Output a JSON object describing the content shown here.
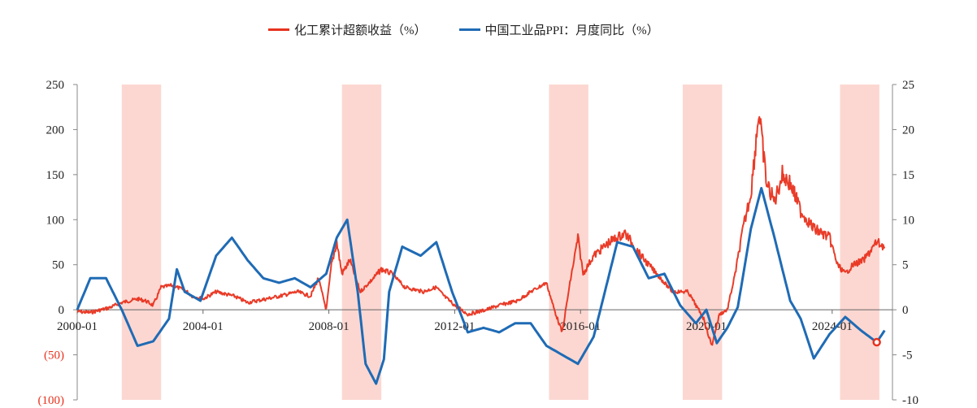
{
  "chart_data": {
    "type": "line",
    "title": "",
    "legend_placement": "top-center",
    "x_tick_labels": [
      "2000-01",
      "2004-01",
      "2008-01",
      "2012-01",
      "2016-01",
      "2020-01",
      "2024-01"
    ],
    "x_range": [
      "2000-01",
      "2025-12"
    ],
    "y_left": {
      "range": [
        -100,
        250
      ],
      "ticks": [
        -100,
        -50,
        0,
        50,
        100,
        150,
        200,
        250
      ],
      "tick_labels": [
        "(100)",
        "(50)",
        "0",
        "50",
        "100",
        "150",
        "200",
        "250"
      ],
      "negative_label_color": "#e8321e"
    },
    "y_right": {
      "range": [
        -10,
        25
      ],
      "ticks": [
        -10,
        -5,
        0,
        5,
        10,
        15,
        20,
        25
      ],
      "tick_labels": [
        "-10",
        "-5",
        "0",
        "5",
        "10",
        "15",
        "20",
        "25"
      ]
    },
    "grid": false,
    "shaded_periods": [
      {
        "start": "2001-06",
        "end": "2002-09"
      },
      {
        "start": "2008-06",
        "end": "2009-09"
      },
      {
        "start": "2015-01",
        "end": "2016-04"
      },
      {
        "start": "2019-04",
        "end": "2020-07"
      },
      {
        "start": "2024-04",
        "end": "2025-07"
      }
    ],
    "series": [
      {
        "name": "化工累计超额收益（%）",
        "axis": "left",
        "color": "#e8321e",
        "points": [
          [
            "2000-01",
            -2
          ],
          [
            "2000-06",
            -3
          ],
          [
            "2001-01",
            2
          ],
          [
            "2001-06",
            8
          ],
          [
            "2001-12",
            12
          ],
          [
            "2002-03",
            10
          ],
          [
            "2002-06",
            5
          ],
          [
            "2002-09",
            25
          ],
          [
            "2003-01",
            27
          ],
          [
            "2003-06",
            22
          ],
          [
            "2003-09",
            15
          ],
          [
            "2004-01",
            12
          ],
          [
            "2004-06",
            20
          ],
          [
            "2005-01",
            15
          ],
          [
            "2005-06",
            8
          ],
          [
            "2006-01",
            12
          ],
          [
            "2006-06",
            15
          ],
          [
            "2007-01",
            20
          ],
          [
            "2007-06",
            15
          ],
          [
            "2007-09",
            35
          ],
          [
            "2007-12",
            0
          ],
          [
            "2008-02",
            50
          ],
          [
            "2008-04",
            75
          ],
          [
            "2008-06",
            40
          ],
          [
            "2008-09",
            55
          ],
          [
            "2009-01",
            20
          ],
          [
            "2009-06",
            35
          ],
          [
            "2009-09",
            45
          ],
          [
            "2010-01",
            40
          ],
          [
            "2010-06",
            25
          ],
          [
            "2011-01",
            20
          ],
          [
            "2011-06",
            25
          ],
          [
            "2011-09",
            15
          ],
          [
            "2012-01",
            5
          ],
          [
            "2012-06",
            -5
          ],
          [
            "2013-01",
            0
          ],
          [
            "2013-06",
            5
          ],
          [
            "2014-01",
            10
          ],
          [
            "2014-06",
            20
          ],
          [
            "2014-12",
            30
          ],
          [
            "2015-03",
            0
          ],
          [
            "2015-06",
            -25
          ],
          [
            "2015-09",
            30
          ],
          [
            "2015-12",
            80
          ],
          [
            "2016-02",
            40
          ],
          [
            "2016-06",
            60
          ],
          [
            "2016-12",
            75
          ],
          [
            "2017-06",
            85
          ],
          [
            "2017-12",
            60
          ],
          [
            "2018-06",
            40
          ],
          [
            "2018-12",
            20
          ],
          [
            "2019-06",
            20
          ],
          [
            "2019-12",
            -10
          ],
          [
            "2020-03",
            -40
          ],
          [
            "2020-06",
            -5
          ],
          [
            "2020-09",
            0
          ],
          [
            "2020-12",
            40
          ],
          [
            "2021-03",
            90
          ],
          [
            "2021-06",
            130
          ],
          [
            "2021-09",
            220
          ],
          [
            "2021-12",
            140
          ],
          [
            "2022-03",
            120
          ],
          [
            "2022-06",
            150
          ],
          [
            "2022-09",
            140
          ],
          [
            "2023-01",
            110
          ],
          [
            "2023-06",
            90
          ],
          [
            "2023-12",
            80
          ],
          [
            "2024-03",
            50
          ],
          [
            "2024-06",
            40
          ],
          [
            "2024-09",
            50
          ],
          [
            "2025-01",
            55
          ],
          [
            "2025-06",
            75
          ],
          [
            "2025-09",
            70
          ]
        ]
      },
      {
        "name": "中国工业品PPI：月度同比（%）",
        "axis": "right",
        "color": "#1f6bb5",
        "points": [
          [
            "2000-01",
            0
          ],
          [
            "2000-06",
            3.5
          ],
          [
            "2000-12",
            3.5
          ],
          [
            "2001-06",
            0
          ],
          [
            "2001-12",
            -4
          ],
          [
            "2002-06",
            -3.5
          ],
          [
            "2002-12",
            -1
          ],
          [
            "2003-03",
            4.5
          ],
          [
            "2003-06",
            2
          ],
          [
            "2003-12",
            1
          ],
          [
            "2004-06",
            6
          ],
          [
            "2004-12",
            8
          ],
          [
            "2005-06",
            5.5
          ],
          [
            "2005-12",
            3.5
          ],
          [
            "2006-06",
            3
          ],
          [
            "2006-12",
            3.5
          ],
          [
            "2007-06",
            2.5
          ],
          [
            "2007-12",
            4
          ],
          [
            "2008-04",
            8
          ],
          [
            "2008-08",
            10
          ],
          [
            "2008-12",
            2
          ],
          [
            "2009-03",
            -6
          ],
          [
            "2009-07",
            -8.2
          ],
          [
            "2009-10",
            -5.5
          ],
          [
            "2009-12",
            2
          ],
          [
            "2010-05",
            7
          ],
          [
            "2010-12",
            6
          ],
          [
            "2011-06",
            7.5
          ],
          [
            "2011-12",
            2
          ],
          [
            "2012-06",
            -2.5
          ],
          [
            "2012-12",
            -2
          ],
          [
            "2013-06",
            -2.5
          ],
          [
            "2013-12",
            -1.5
          ],
          [
            "2014-06",
            -1.5
          ],
          [
            "2014-12",
            -4
          ],
          [
            "2015-06",
            -5
          ],
          [
            "2015-12",
            -6
          ],
          [
            "2016-06",
            -3
          ],
          [
            "2016-12",
            4
          ],
          [
            "2017-03",
            7.5
          ],
          [
            "2017-09",
            7
          ],
          [
            "2018-03",
            3.5
          ],
          [
            "2018-09",
            4
          ],
          [
            "2019-03",
            0.5
          ],
          [
            "2019-09",
            -1.5
          ],
          [
            "2020-01",
            0
          ],
          [
            "2020-05",
            -3.7
          ],
          [
            "2020-09",
            -2
          ],
          [
            "2021-01",
            0.3
          ],
          [
            "2021-06",
            9
          ],
          [
            "2021-10",
            13.5
          ],
          [
            "2022-03",
            8
          ],
          [
            "2022-09",
            1
          ],
          [
            "2023-01",
            -1
          ],
          [
            "2023-06",
            -5.4
          ],
          [
            "2023-12",
            -2.7
          ],
          [
            "2024-06",
            -0.8
          ],
          [
            "2024-12",
            -2.3
          ],
          [
            "2025-06",
            -3.6
          ],
          [
            "2025-09",
            -2.3
          ]
        ]
      }
    ]
  }
}
